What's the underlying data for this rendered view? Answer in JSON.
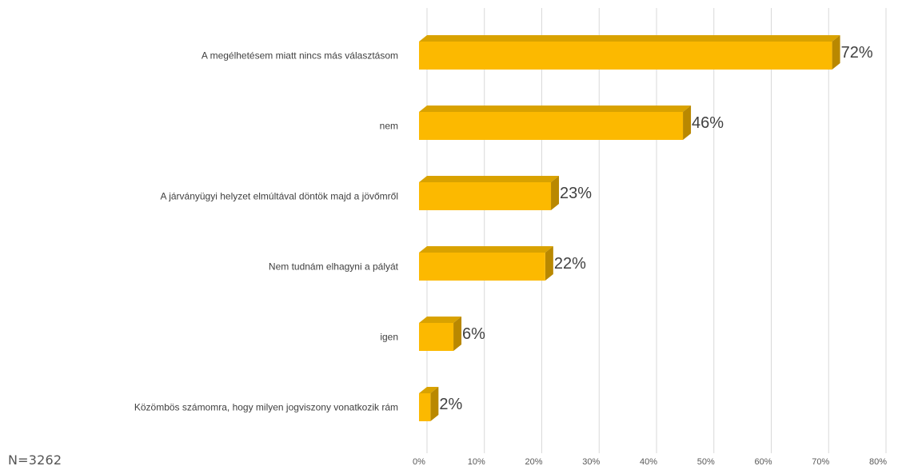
{
  "chart_data": {
    "type": "bar",
    "orientation": "horizontal",
    "style": "3d",
    "categories": [
      "A megélhetésem miatt nincs más választásom",
      "nem",
      "A járványügyi helyzet elmúltával döntök majd a jövőmről",
      "Nem tudnám elhagyni a pályát",
      "igen",
      "Közömbös számomra, hogy milyen jogviszony vonatkozik rám"
    ],
    "values": [
      72,
      46,
      23,
      22,
      6,
      2
    ],
    "data_labels": [
      "72%",
      "46%",
      "23%",
      "22%",
      "6%",
      "2%"
    ],
    "x_ticks": [
      0,
      10,
      20,
      30,
      40,
      50,
      60,
      70,
      80
    ],
    "x_tick_labels": [
      "0%",
      "10%",
      "20%",
      "30%",
      "40%",
      "50%",
      "60%",
      "70%",
      "80%"
    ],
    "xlim": [
      0,
      80
    ],
    "grid": "vertical",
    "legend": "none",
    "colors": {
      "bar_front": "#FCB900",
      "bar_top": "#D9A200",
      "bar_side": "#B98800",
      "grid": "#D9D9D9",
      "category_text": "#404040",
      "value_text": "#404040",
      "tick_text": "#595959"
    }
  },
  "footnote": "N=3262"
}
